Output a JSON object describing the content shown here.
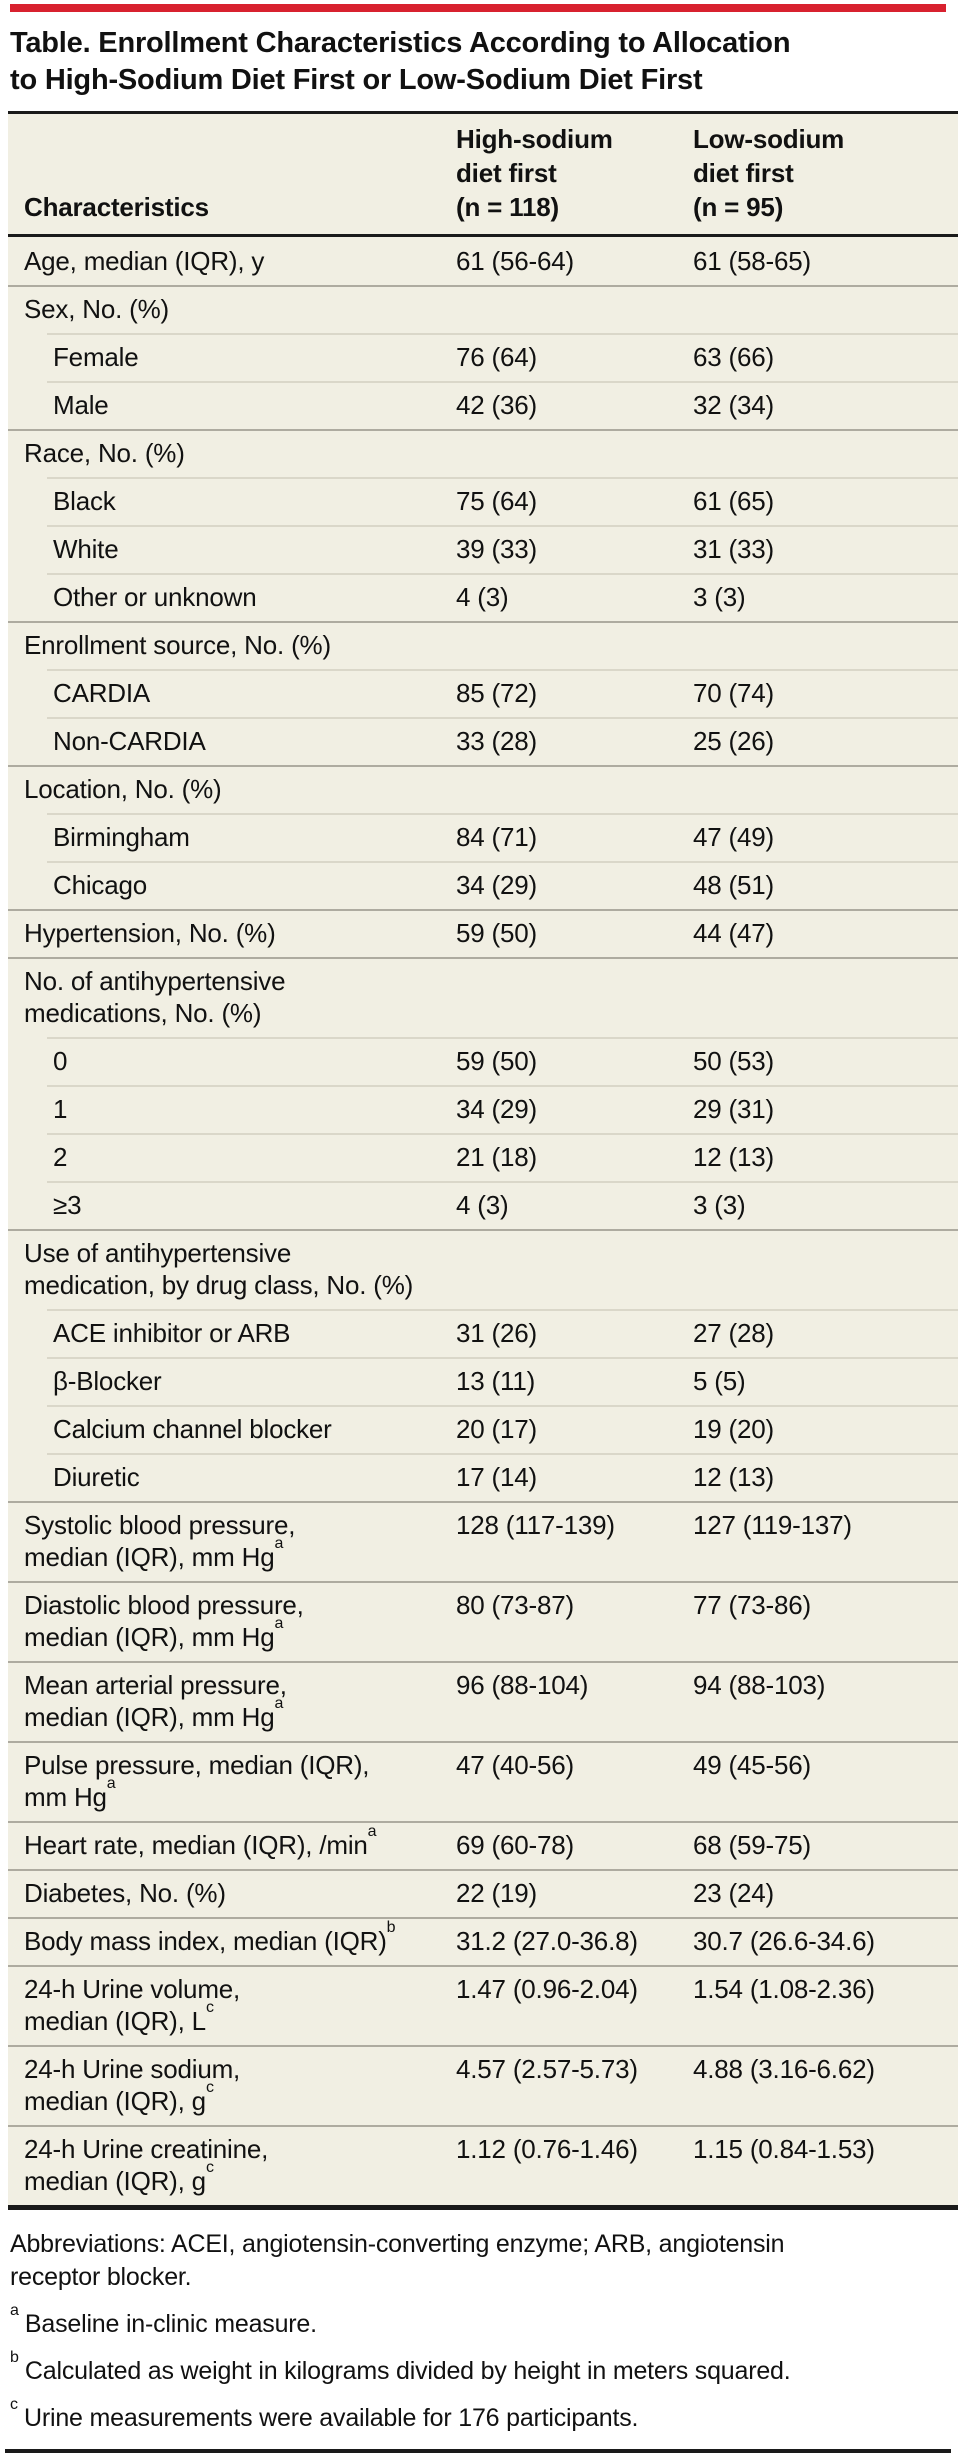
{
  "page": {
    "colors": {
      "accent": "#d8212f",
      "table_bg": "#f1efe3",
      "rule": "#1a1a1a",
      "divider_full": "#aeaba0",
      "divider_inset": "#dad7c9",
      "text": "#111111"
    }
  },
  "title": {
    "line1": "Table. Enrollment Characteristics According to Allocation",
    "line2": "to High-Sodium Diet First or Low-Sodium Diet First"
  },
  "table": {
    "header": {
      "characteristics": "Characteristics",
      "col1_lines": [
        "High-sodium",
        "diet first",
        "(n = 118)"
      ],
      "col2_lines": [
        "Low-sodium",
        "diet first",
        "(n = 95)"
      ]
    },
    "rows": [
      {
        "label_lines": [
          "Age, median (IQR), y"
        ],
        "sup": null,
        "indent": false,
        "values": [
          "61 (56-64)",
          "61 (58-65)"
        ]
      },
      {
        "label_lines": [
          "Sex, No. (%)"
        ],
        "sup": null,
        "indent": false,
        "values": [
          "",
          ""
        ]
      },
      {
        "label_lines": [
          "Female"
        ],
        "sup": null,
        "indent": true,
        "values": [
          "76 (64)",
          "63 (66)"
        ]
      },
      {
        "label_lines": [
          "Male"
        ],
        "sup": null,
        "indent": true,
        "values": [
          "42 (36)",
          "32 (34)"
        ]
      },
      {
        "label_lines": [
          "Race, No. (%)"
        ],
        "sup": null,
        "indent": false,
        "values": [
          "",
          ""
        ]
      },
      {
        "label_lines": [
          "Black"
        ],
        "sup": null,
        "indent": true,
        "values": [
          "75 (64)",
          "61 (65)"
        ]
      },
      {
        "label_lines": [
          "White"
        ],
        "sup": null,
        "indent": true,
        "values": [
          "39 (33)",
          "31 (33)"
        ]
      },
      {
        "label_lines": [
          "Other or unknown"
        ],
        "sup": null,
        "indent": true,
        "values": [
          "4 (3)",
          "3 (3)"
        ]
      },
      {
        "label_lines": [
          "Enrollment source, No. (%)"
        ],
        "sup": null,
        "indent": false,
        "values": [
          "",
          ""
        ]
      },
      {
        "label_lines": [
          "CARDIA"
        ],
        "sup": null,
        "indent": true,
        "values": [
          "85 (72)",
          "70 (74)"
        ]
      },
      {
        "label_lines": [
          "Non-CARDIA"
        ],
        "sup": null,
        "indent": true,
        "values": [
          "33 (28)",
          "25 (26)"
        ]
      },
      {
        "label_lines": [
          "Location, No. (%)"
        ],
        "sup": null,
        "indent": false,
        "values": [
          "",
          ""
        ]
      },
      {
        "label_lines": [
          "Birmingham"
        ],
        "sup": null,
        "indent": true,
        "values": [
          "84 (71)",
          "47 (49)"
        ]
      },
      {
        "label_lines": [
          "Chicago"
        ],
        "sup": null,
        "indent": true,
        "values": [
          "34 (29)",
          "48 (51)"
        ]
      },
      {
        "label_lines": [
          "Hypertension, No. (%)"
        ],
        "sup": null,
        "indent": false,
        "values": [
          "59 (50)",
          "44 (47)"
        ]
      },
      {
        "label_lines": [
          "No. of antihypertensive",
          "medications, No. (%)"
        ],
        "sup": null,
        "indent": false,
        "values": [
          "",
          ""
        ]
      },
      {
        "label_lines": [
          "0"
        ],
        "sup": null,
        "indent": true,
        "values": [
          "59 (50)",
          "50 (53)"
        ]
      },
      {
        "label_lines": [
          "1"
        ],
        "sup": null,
        "indent": true,
        "values": [
          "34 (29)",
          "29 (31)"
        ]
      },
      {
        "label_lines": [
          "2"
        ],
        "sup": null,
        "indent": true,
        "values": [
          "21 (18)",
          "12 (13)"
        ]
      },
      {
        "label_lines": [
          "≥3"
        ],
        "sup": null,
        "indent": true,
        "values": [
          "4 (3)",
          "3 (3)"
        ]
      },
      {
        "label_lines": [
          "Use of antihypertensive",
          "medication, by drug class, No. (%)"
        ],
        "sup": null,
        "indent": false,
        "values": [
          "",
          ""
        ]
      },
      {
        "label_lines": [
          "ACE inhibitor or ARB"
        ],
        "sup": null,
        "indent": true,
        "values": [
          "31 (26)",
          "27 (28)"
        ]
      },
      {
        "label_lines": [
          "β-Blocker"
        ],
        "sup": null,
        "indent": true,
        "values": [
          "13 (11)",
          "5 (5)"
        ]
      },
      {
        "label_lines": [
          "Calcium channel blocker"
        ],
        "sup": null,
        "indent": true,
        "values": [
          "20 (17)",
          "19 (20)"
        ]
      },
      {
        "label_lines": [
          "Diuretic"
        ],
        "sup": null,
        "indent": true,
        "values": [
          "17 (14)",
          "12 (13)"
        ]
      },
      {
        "label_lines": [
          "Systolic blood pressure,",
          "median (IQR), mm Hg"
        ],
        "sup": "a",
        "indent": false,
        "values": [
          "128 (117-139)",
          "127 (119-137)"
        ]
      },
      {
        "label_lines": [
          "Diastolic blood pressure,",
          "median (IQR), mm Hg"
        ],
        "sup": "a",
        "indent": false,
        "values": [
          "80 (73-87)",
          "77 (73-86)"
        ]
      },
      {
        "label_lines": [
          "Mean arterial pressure,",
          "median (IQR), mm Hg"
        ],
        "sup": "a",
        "indent": false,
        "values": [
          "96 (88-104)",
          "94 (88-103)"
        ]
      },
      {
        "label_lines": [
          "Pulse pressure, median (IQR),",
          "mm Hg"
        ],
        "sup": "a",
        "indent": false,
        "values": [
          "47 (40-56)",
          "49 (45-56)"
        ]
      },
      {
        "label_lines": [
          "Heart rate, median (IQR), /min"
        ],
        "sup": "a",
        "indent": false,
        "values": [
          "69 (60-78)",
          "68 (59-75)"
        ]
      },
      {
        "label_lines": [
          "Diabetes, No. (%)"
        ],
        "sup": null,
        "indent": false,
        "values": [
          "22 (19)",
          "23 (24)"
        ]
      },
      {
        "label_lines": [
          "Body mass index, median (IQR)"
        ],
        "sup": "b",
        "indent": false,
        "values": [
          "31.2 (27.0-36.8)",
          "30.7 (26.6-34.6)"
        ]
      },
      {
        "label_lines": [
          "24-h Urine volume,",
          "median (IQR), L"
        ],
        "sup": "c",
        "indent": false,
        "values": [
          "1.47 (0.96-2.04)",
          "1.54 (1.08-2.36)"
        ]
      },
      {
        "label_lines": [
          "24-h Urine sodium,",
          "median (IQR), g"
        ],
        "sup": "c",
        "indent": false,
        "values": [
          "4.57 (2.57-5.73)",
          "4.88 (3.16-6.62)"
        ]
      },
      {
        "label_lines": [
          "24-h Urine creatinine,",
          "median (IQR), g"
        ],
        "sup": "c",
        "indent": false,
        "values": [
          "1.12 (0.76-1.46)",
          "1.15 (0.84-1.53)"
        ]
      }
    ]
  },
  "footnotes": {
    "abbreviations_lines": [
      "Abbreviations: ACEI, angiotensin-converting enzyme; ARB, angiotensin",
      "receptor blocker."
    ],
    "items": [
      {
        "sup": "a",
        "text": "Baseline in-clinic measure."
      },
      {
        "sup": "b",
        "text": "Calculated as weight in kilograms divided by height in meters squared."
      },
      {
        "sup": "c",
        "text": "Urine measurements were available for 176 participants."
      }
    ]
  }
}
